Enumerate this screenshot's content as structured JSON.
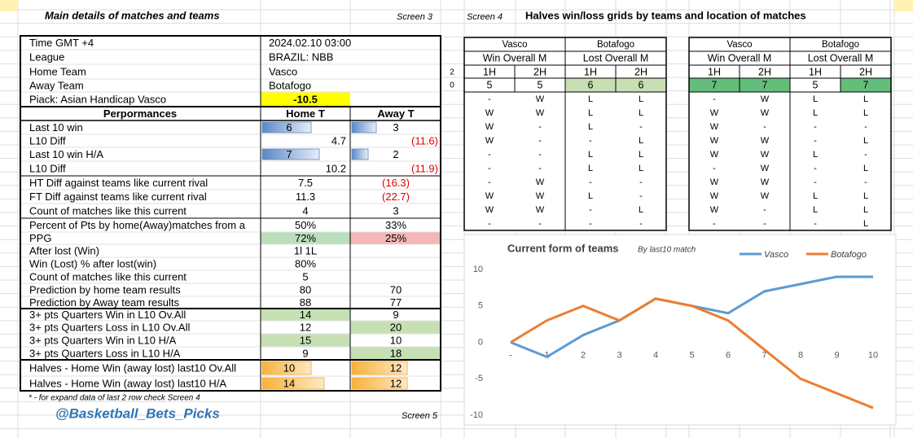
{
  "header": {
    "title": "Main details of matches and teams",
    "screen3": "Screen 3",
    "screen4": "Screen 4",
    "grids_title": "Halves win/loss grids by teams and location of matches"
  },
  "details": {
    "rows": [
      {
        "label": "Time  GMT +4",
        "home": "2024.02.10 03:00"
      },
      {
        "label": "League",
        "home": "BRAZIL: NBB"
      },
      {
        "label": "Home Team",
        "home": "Vasco"
      },
      {
        "label": "Away Team",
        "home": "Botafogo"
      },
      {
        "label": "Piack: Asian Handicap Vasco",
        "home": -10.5
      },
      {
        "label": "Perpormances",
        "home": "Home T",
        "away": "Away T"
      },
      {
        "label": "Last 10  win",
        "home": 6,
        "away": 3
      },
      {
        "label": "L10 Diff",
        "home": 4.7,
        "away": "(11.6)"
      },
      {
        "label": "Last 10  win H/A",
        "home": 7,
        "away": 2
      },
      {
        "label": "L10 Diff",
        "home": 10.2,
        "away": "(11.9)"
      },
      {
        "label": "HT Diff against teams like current rival",
        "home": 7.5,
        "away": "(16.3)"
      },
      {
        "label": "FT Diff against teams like current rival",
        "home": 11.3,
        "away": "(22.7)"
      },
      {
        "label": "Count of matches like this current",
        "home": 4,
        "away": 3
      },
      {
        "label": "Percent of Pts by home(Away)matches from a",
        "home": "50%",
        "away": "33%"
      },
      {
        "label": "PPG",
        "home": "72%",
        "away": "25%"
      },
      {
        "label": "After lost (Win)",
        "home": "1l 1L"
      },
      {
        "label": "Win (Lost) % after lost(win)",
        "home": "80%"
      },
      {
        "label": "Count of matches like this current",
        "home": 5
      },
      {
        "label": "Prediction by home team results",
        "home": 80,
        "away": 70
      },
      {
        "label": "Prediction by Away team results",
        "home": 88,
        "away": 77
      },
      {
        "label": "3+ pts Quarters Win in L10 Ov.All",
        "home": 14,
        "away": 9
      },
      {
        "label": "3+ pts Quarters Loss in L10 Ov.All",
        "home": 12,
        "away": 20
      },
      {
        "label": "3+ pts Quarters Win in L10 H/A",
        "home": 15,
        "away": 10
      },
      {
        "label": "3+ pts Quarters Loss in L10 H/A",
        "home": 9,
        "away": 18
      },
      {
        "label": "Halves - Home Win  (away lost) last10 Ov.All",
        "home": 10,
        "away": 12
      },
      {
        "label": "Halves - Home Win  (away lost) last10 H/A",
        "home": 14,
        "away": 12
      }
    ]
  },
  "side_labels": [
    2,
    0
  ],
  "grids": [
    {
      "teams": [
        "Vasco",
        "Botafogo"
      ],
      "columns": [
        "Win Overall M",
        "Lost Overall M"
      ],
      "halves": [
        "1H",
        "2H",
        "1H",
        "2H"
      ],
      "counts": [
        5,
        5,
        6,
        6
      ],
      "rows": [
        [
          "-",
          "W",
          "L",
          "L"
        ],
        [
          "W",
          "W",
          "L",
          "L"
        ],
        [
          "W",
          "-",
          "L",
          "-"
        ],
        [
          "W",
          "-",
          "-",
          "L"
        ],
        [
          "-",
          "-",
          "L",
          "L"
        ],
        [
          "-",
          "-",
          "L",
          "L"
        ],
        [
          "-",
          "W",
          "-",
          "-"
        ],
        [
          "W",
          "W",
          "L",
          "-"
        ],
        [
          "W",
          "W",
          "-",
          "L"
        ],
        [
          "-",
          "-",
          "-",
          "-"
        ]
      ]
    },
    {
      "teams": [
        "Vasco",
        "Botafogo"
      ],
      "columns": [
        "Win Overall M",
        "Lost Overall M"
      ],
      "halves": [
        "1H",
        "2H",
        "1H",
        "2H"
      ],
      "counts": [
        7,
        7,
        5,
        7
      ],
      "rows": [
        [
          "-",
          "W",
          "L",
          "L"
        ],
        [
          "W",
          "W",
          "L",
          "L"
        ],
        [
          "W",
          "-",
          "-",
          "-"
        ],
        [
          "W",
          "W",
          "-",
          "L"
        ],
        [
          "W",
          "W",
          "L",
          "-"
        ],
        [
          "-",
          "W",
          "-",
          "L"
        ],
        [
          "W",
          "W",
          "-",
          "-"
        ],
        [
          "W",
          "W",
          "L",
          "L"
        ],
        [
          "W",
          "-",
          "L",
          "L"
        ],
        [
          "-",
          "-",
          "-",
          "L"
        ]
      ]
    }
  ],
  "chart_data": {
    "type": "line",
    "title": "Current form of  teams",
    "subtitle": "By last10 match",
    "categories": [
      "-",
      "1",
      "2",
      "3",
      "4",
      "5",
      "6",
      "7",
      "8",
      "9",
      "10"
    ],
    "series": [
      {
        "name": "Vasco",
        "color": "#5b9bd5",
        "values": [
          0,
          -2,
          1,
          3,
          6,
          5,
          4,
          7,
          8,
          9,
          9
        ]
      },
      {
        "name": "Botafogo",
        "color": "#ed7d31",
        "values": [
          0,
          3,
          5,
          3,
          6,
          5,
          3,
          -1,
          -5,
          -7,
          -9
        ]
      }
    ],
    "ylim": [
      -10,
      10
    ],
    "yticks": [
      -10,
      -5,
      0,
      5,
      10
    ],
    "grid": false
  },
  "footer": {
    "note": "* - for expand data of last 2 row check Screen 4",
    "handle": "@Basketball_Bets_Picks",
    "screen5": "Screen 5"
  }
}
